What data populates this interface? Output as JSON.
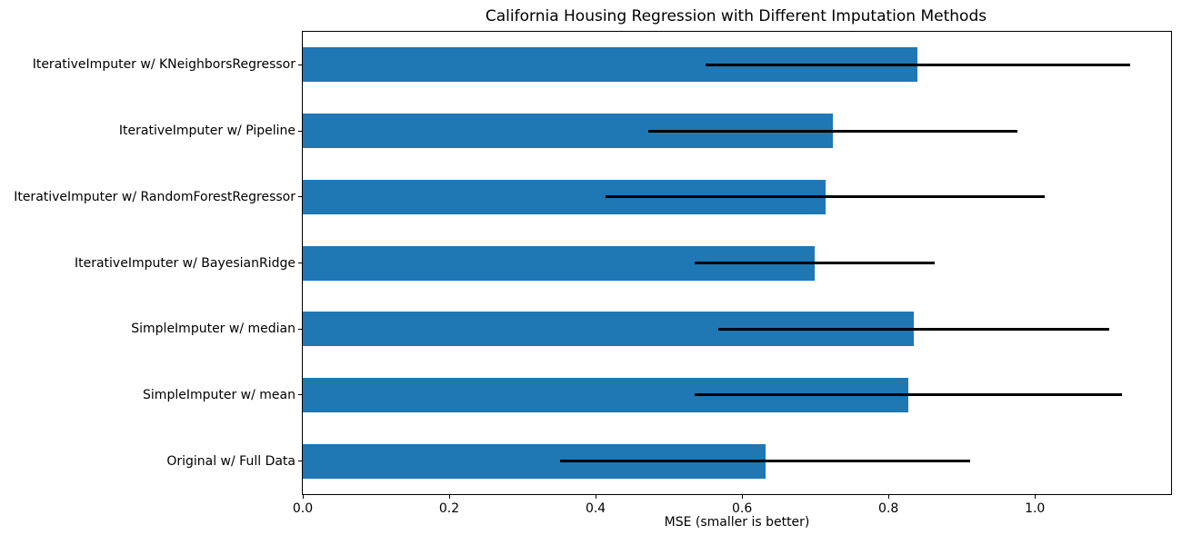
{
  "figure": {
    "background": "#ffffff"
  },
  "chart_data": {
    "type": "bar",
    "orientation": "horizontal",
    "title": "California Housing Regression with Different Imputation Methods",
    "xlabel": "MSE (smaller is better)",
    "ylabel": "",
    "categories_top_to_bottom": [
      "IterativeImputer w/ KNeighborsRegressor",
      "IterativeImputer w/ Pipeline",
      "IterativeImputer w/ RandomForestRegressor",
      "IterativeImputer w/ BayesianRidge",
      "SimpleImputer w/ median",
      "SimpleImputer w/ mean",
      "Original w/ Full Data"
    ],
    "values": [
      0.84,
      0.724,
      0.714,
      0.699,
      0.834,
      0.827,
      0.632
    ],
    "xerr": [
      0.29,
      0.252,
      0.3,
      0.164,
      0.267,
      0.292,
      0.28
    ],
    "xlim": [
      0,
      1.186
    ],
    "xticks": [
      0.0,
      0.2,
      0.4,
      0.6,
      0.8,
      1.0
    ],
    "xtick_labels": [
      "0.0",
      "0.2",
      "0.4",
      "0.6",
      "0.8",
      "1.0"
    ],
    "bar_color": "#1f77b4",
    "error_color": "#000000",
    "axis_color": "#000000",
    "grid": false,
    "legend": null
  }
}
